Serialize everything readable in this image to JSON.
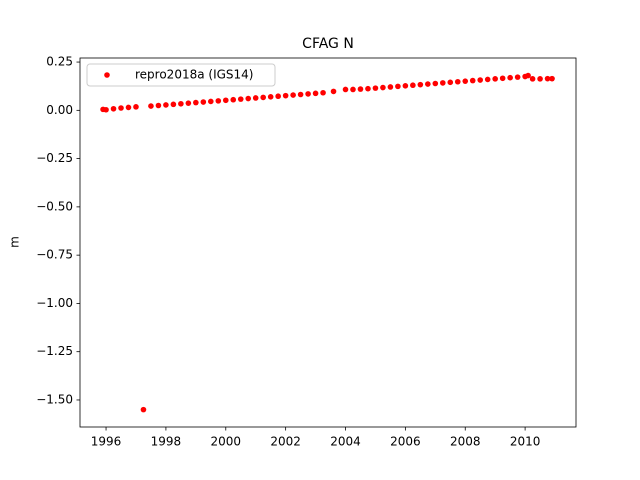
{
  "chart_data": {
    "type": "scatter",
    "title": "CFAG N",
    "y_label": "m",
    "series": [
      {
        "name": "repro2018a (IGS14)",
        "color": "#ff0000",
        "x": [
          1995.9,
          1996.0,
          1996.25,
          1996.5,
          1996.75,
          1997.0,
          1997.25,
          1997.5,
          1997.75,
          1998.0,
          1998.25,
          1998.5,
          1998.75,
          1999.0,
          1999.25,
          1999.5,
          1999.75,
          2000.0,
          2000.25,
          2000.5,
          2000.75,
          2001.0,
          2001.25,
          2001.5,
          2001.75,
          2002.0,
          2002.25,
          2002.5,
          2002.75,
          2003.0,
          2003.25,
          2003.6,
          2004.0,
          2004.25,
          2004.5,
          2004.75,
          2005.0,
          2005.25,
          2005.5,
          2005.75,
          2006.0,
          2006.25,
          2006.5,
          2006.75,
          2007.0,
          2007.25,
          2007.5,
          2007.75,
          2008.0,
          2008.25,
          2008.5,
          2008.75,
          2009.0,
          2009.25,
          2009.5,
          2009.75,
          2010.0,
          2010.1,
          2010.25,
          2010.5,
          2010.75,
          2010.9
        ],
        "values": [
          0.005,
          0.003,
          0.008,
          0.012,
          0.015,
          0.018,
          -1.55,
          0.022,
          0.025,
          0.028,
          0.031,
          0.034,
          0.037,
          0.04,
          0.043,
          0.046,
          0.049,
          0.052,
          0.055,
          0.058,
          0.061,
          0.064,
          0.067,
          0.07,
          0.073,
          0.076,
          0.079,
          0.082,
          0.085,
          0.088,
          0.091,
          0.098,
          0.108,
          0.108,
          0.11,
          0.112,
          0.115,
          0.118,
          0.121,
          0.124,
          0.127,
          0.13,
          0.133,
          0.136,
          0.139,
          0.142,
          0.145,
          0.148,
          0.151,
          0.154,
          0.157,
          0.16,
          0.163,
          0.166,
          0.169,
          0.172,
          0.175,
          0.18,
          0.163,
          0.163,
          0.164,
          0.164
        ]
      }
    ],
    "xlim": [
      1995.13,
      2011.7
    ],
    "ylim": [
      -1.64,
      0.271
    ],
    "xticks": [
      1996,
      1998,
      2000,
      2002,
      2004,
      2006,
      2008,
      2010
    ],
    "yticks": [
      0.25,
      {
        "value": 0,
        "label": "0.00"
      },
      {
        "value": -0.25,
        "label": "−0.25"
      },
      {
        "value": -0.5,
        "label": "−0.50"
      },
      {
        "value": -0.75,
        "label": "−0.75"
      },
      {
        "value": -1,
        "label": "−1.00"
      },
      {
        "value": -1.25,
        "label": "−1.25"
      },
      {
        "value": -1.5,
        "label": "−1.50"
      }
    ],
    "legend": "upper left"
  }
}
